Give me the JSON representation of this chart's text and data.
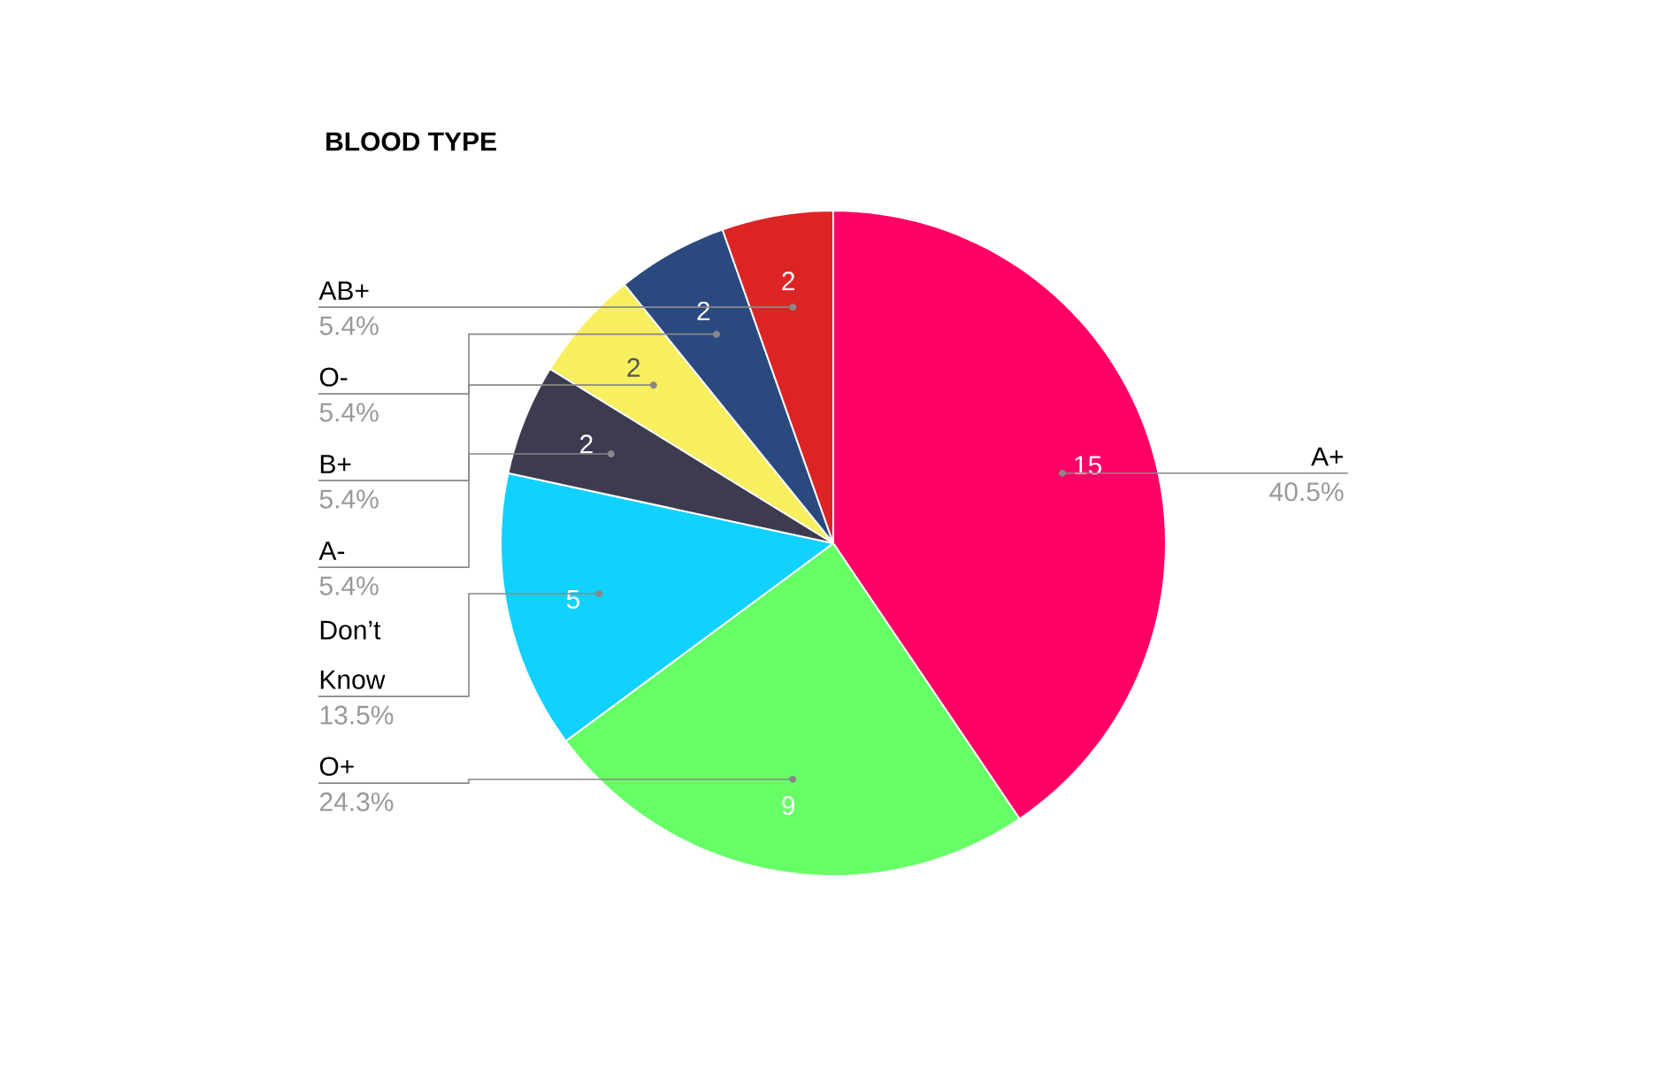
{
  "chart_data": {
    "type": "pie",
    "title": "BLOOD TYPE",
    "categories": [
      "A+",
      "O+",
      "Don’t Know",
      "A-",
      "B+",
      "O-",
      "AB+"
    ],
    "values": [
      15,
      9,
      5,
      2,
      2,
      2,
      2
    ],
    "colors": [
      "#ff0066",
      "#66ff66",
      "#11d1ff",
      "#3d3b50",
      "#f8ef5f",
      "#2a4a7f",
      "#dd2424"
    ],
    "data_labels": true,
    "annotations": [
      "40.5%",
      "24.3%",
      "13.5%",
      "5.4%",
      "5.4%",
      "5.4%",
      "5.4%"
    ]
  }
}
